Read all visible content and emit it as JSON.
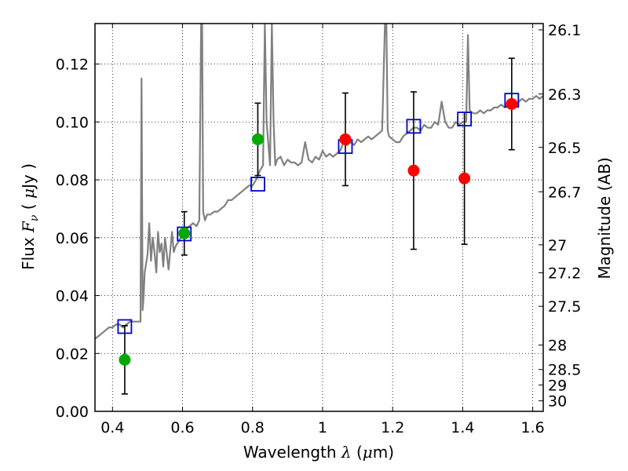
{
  "chart_data": {
    "type": "scatter",
    "xlabel": "Wavelength  λ (μm)",
    "ylabel": "Flux  Fν  ( μJy )",
    "ylabel_right": "Magnitude (AB)",
    "xlim": [
      0.35,
      1.63
    ],
    "ylim": [
      0.0,
      0.134
    ],
    "grid": true,
    "x_ticks": [
      0.4,
      0.6,
      0.8,
      1.0,
      1.2,
      1.4,
      1.6
    ],
    "x_tick_labels": [
      "0.4",
      "0.6",
      "0.8",
      "1",
      "1.2",
      "1.4",
      "1.6"
    ],
    "y_ticks": [
      0.0,
      0.02,
      0.04,
      0.06,
      0.08,
      0.1,
      0.12
    ],
    "y_tick_labels": [
      "0.00",
      "0.02",
      "0.04",
      "0.06",
      "0.08",
      "0.10",
      "0.12"
    ],
    "right_axis_ticks": [
      "26.1",
      "26.3",
      "26.5",
      "26.7",
      "27",
      "27.2",
      "27.5",
      "28",
      "28.5",
      "29",
      "30"
    ],
    "spectrum": {
      "color": "#808080",
      "x": [
        0.35,
        0.36,
        0.37,
        0.38,
        0.39,
        0.4,
        0.41,
        0.42,
        0.43,
        0.44,
        0.45,
        0.46,
        0.47,
        0.48,
        0.483,
        0.486,
        0.489,
        0.492,
        0.5,
        0.505,
        0.51,
        0.515,
        0.52,
        0.525,
        0.53,
        0.535,
        0.54,
        0.545,
        0.55,
        0.56,
        0.57,
        0.575,
        0.58,
        0.59,
        0.6,
        0.61,
        0.62,
        0.63,
        0.64,
        0.648,
        0.653,
        0.656,
        0.659,
        0.664,
        0.67,
        0.68,
        0.69,
        0.7,
        0.71,
        0.72,
        0.73,
        0.74,
        0.75,
        0.76,
        0.77,
        0.78,
        0.79,
        0.8,
        0.81,
        0.82,
        0.83,
        0.835,
        0.84,
        0.85,
        0.855,
        0.86,
        0.865,
        0.87,
        0.88,
        0.89,
        0.9,
        0.91,
        0.92,
        0.93,
        0.94,
        0.95,
        0.96,
        0.97,
        0.98,
        0.99,
        1.0,
        1.01,
        1.02,
        1.03,
        1.04,
        1.05,
        1.06,
        1.07,
        1.08,
        1.09,
        1.1,
        1.11,
        1.12,
        1.13,
        1.14,
        1.15,
        1.16,
        1.17,
        1.178,
        1.182,
        1.186,
        1.19,
        1.2,
        1.21,
        1.22,
        1.23,
        1.24,
        1.25,
        1.26,
        1.27,
        1.28,
        1.29,
        1.3,
        1.31,
        1.32,
        1.33,
        1.34,
        1.35,
        1.36,
        1.37,
        1.38,
        1.39,
        1.4,
        1.41,
        1.415,
        1.42,
        1.43,
        1.44,
        1.45,
        1.46,
        1.47,
        1.48,
        1.49,
        1.5,
        1.51,
        1.52,
        1.53,
        1.54,
        1.55,
        1.56,
        1.57,
        1.58,
        1.59,
        1.6,
        1.61,
        1.62,
        1.63
      ],
      "y": [
        0.025,
        0.026,
        0.027,
        0.028,
        0.029,
        0.029,
        0.03,
        0.03,
        0.029,
        0.03,
        0.031,
        0.031,
        0.031,
        0.031,
        0.115,
        0.035,
        0.04,
        0.048,
        0.054,
        0.065,
        0.052,
        0.06,
        0.055,
        0.048,
        0.062,
        0.055,
        0.058,
        0.05,
        0.06,
        0.049,
        0.062,
        0.055,
        0.057,
        0.059,
        0.061,
        0.063,
        0.064,
        0.065,
        0.064,
        0.066,
        0.134,
        0.134,
        0.069,
        0.066,
        0.068,
        0.068,
        0.069,
        0.069,
        0.07,
        0.071,
        0.073,
        0.073,
        0.074,
        0.075,
        0.076,
        0.077,
        0.078,
        0.078,
        0.08,
        0.083,
        0.085,
        0.134,
        0.1,
        0.085,
        0.134,
        0.1,
        0.085,
        0.087,
        0.088,
        0.085,
        0.087,
        0.086,
        0.086,
        0.085,
        0.086,
        0.093,
        0.087,
        0.086,
        0.088,
        0.087,
        0.09,
        0.088,
        0.089,
        0.088,
        0.089,
        0.09,
        0.093,
        0.092,
        0.093,
        0.092,
        0.094,
        0.093,
        0.094,
        0.095,
        0.094,
        0.095,
        0.096,
        0.097,
        0.134,
        0.134,
        0.097,
        0.095,
        0.094,
        0.093,
        0.093,
        0.095,
        0.096,
        0.097,
        0.098,
        0.098,
        0.097,
        0.099,
        0.098,
        0.098,
        0.1,
        0.099,
        0.107,
        0.1,
        0.098,
        0.098,
        0.1,
        0.099,
        0.1,
        0.1,
        0.13,
        0.104,
        0.103,
        0.103,
        0.104,
        0.103,
        0.104,
        0.104,
        0.105,
        0.105,
        0.106,
        0.105,
        0.106,
        0.107,
        0.106,
        0.107,
        0.108,
        0.107,
        0.108,
        0.108,
        0.109,
        0.108,
        0.109
      ]
    },
    "series": [
      {
        "marker": "square",
        "color": "#0000cc",
        "fill": "none",
        "x": [
          0.435,
          0.605,
          0.815,
          1.065,
          1.26,
          1.405,
          1.54
        ],
        "y": [
          0.0293,
          0.0613,
          0.0785,
          0.0915,
          0.0985,
          0.101,
          0.1075
        ]
      },
      {
        "marker": "circle",
        "color": "#00aa00",
        "x": [
          0.435,
          0.605,
          0.815
        ],
        "y": [
          0.0178,
          0.0615,
          0.094
        ],
        "err": [
          0.0118,
          0.0075,
          0.0125
        ]
      },
      {
        "marker": "circle",
        "color": "#ff0000",
        "x": [
          1.065,
          1.26,
          1.405,
          1.54
        ],
        "y": [
          0.094,
          0.0832,
          0.0805,
          0.1062
        ],
        "err": [
          0.016,
          0.0272,
          0.0228,
          0.0158
        ]
      }
    ]
  }
}
